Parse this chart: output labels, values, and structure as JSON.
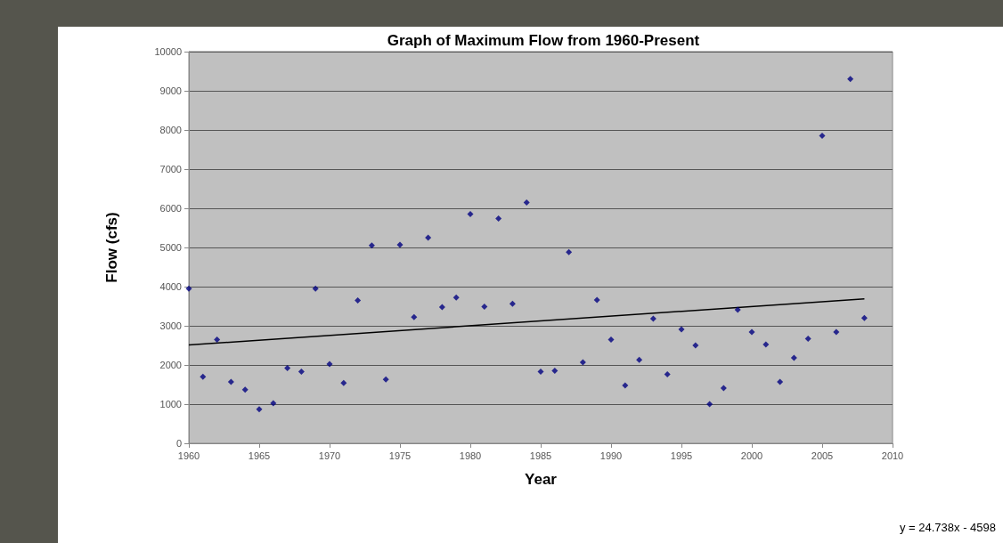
{
  "chart_data": {
    "type": "scatter",
    "title": "Graph of Maximum Flow from 1960-Present",
    "xlabel": "Year",
    "ylabel": "Flow (cfs)",
    "x": [
      1960,
      1961,
      1962,
      1963,
      1964,
      1965,
      1966,
      1967,
      1968,
      1969,
      1970,
      1971,
      1972,
      1973,
      1974,
      1975,
      1976,
      1977,
      1978,
      1979,
      1980,
      1981,
      1982,
      1983,
      1984,
      1985,
      1986,
      1987,
      1988,
      1989,
      1990,
      1991,
      1992,
      1993,
      1994,
      1995,
      1996,
      1997,
      1998,
      1999,
      2000,
      2001,
      2002,
      2003,
      2004,
      2005,
      2006,
      2007,
      2008
    ],
    "series": [
      {
        "color": "#000080",
        "marker": "diamond",
        "values": [
          3950,
          1700,
          2650,
          1570,
          1370,
          870,
          1020,
          1920,
          1830,
          3950,
          2020,
          1540,
          3650,
          5050,
          1630,
          5070,
          3220,
          5250,
          3480,
          3720,
          5850,
          3490,
          5740,
          3560,
          6150,
          1830,
          1850,
          4880,
          2070,
          3660,
          2650,
          1480,
          2130,
          3180,
          1760,
          2910,
          2500,
          1000,
          1410,
          3410,
          2840,
          2520,
          1570,
          2180,
          2670,
          7850,
          2840,
          9300,
          3200
        ]
      },
      {
        "type": "line",
        "color": "#000000",
        "marker": "none",
        "x": [
          1960,
          2008
        ],
        "values": [
          2510,
          3690
        ]
      }
    ],
    "xlim": [
      1960,
      2010
    ],
    "xticks": [
      1960,
      1965,
      1970,
      1975,
      1980,
      1985,
      1990,
      1995,
      2000,
      2005,
      2010
    ],
    "ylim": [
      0,
      10000
    ],
    "yticks": [
      0,
      1000,
      2000,
      3000,
      4000,
      5000,
      6000,
      7000,
      8000,
      9000,
      10000
    ],
    "grid": "y",
    "annotations": [
      "y = 24.738x - 4598"
    ]
  }
}
